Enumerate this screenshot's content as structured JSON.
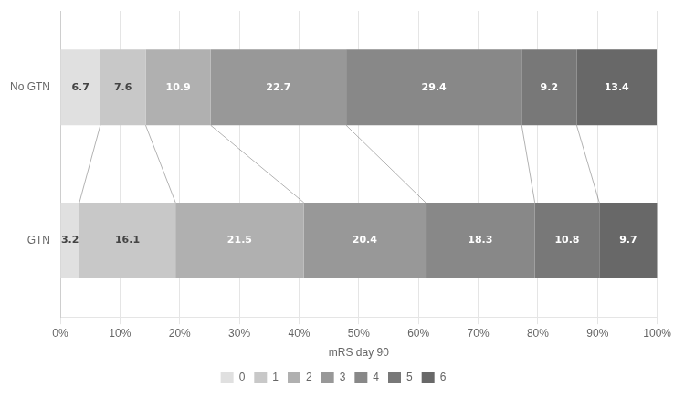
{
  "chart_data": {
    "type": "bar",
    "orientation": "horizontal",
    "stacked": true,
    "data_labels": true,
    "xlabel": "mRS day 90",
    "categories": [
      "No GTN",
      "GTN"
    ],
    "series": [
      {
        "name": "0",
        "color": "#e0e0e0",
        "values": [
          6.7,
          3.2
        ]
      },
      {
        "name": "1",
        "color": "#c8c8c8",
        "values": [
          7.6,
          16.1
        ]
      },
      {
        "name": "2",
        "color": "#b0b0b0",
        "values": [
          10.9,
          21.5
        ]
      },
      {
        "name": "3",
        "color": "#989898",
        "values": [
          22.7,
          20.4
        ]
      },
      {
        "name": "4",
        "color": "#888888",
        "values": [
          29.4,
          18.3
        ]
      },
      {
        "name": "5",
        "color": "#787878",
        "values": [
          9.2,
          10.8
        ]
      },
      {
        "name": "6",
        "color": "#686868",
        "values": [
          13.4,
          9.7
        ]
      }
    ],
    "xlim": [
      0,
      100
    ],
    "xticks": [
      {
        "value": 0,
        "label": "0%"
      },
      {
        "value": 10,
        "label": "10%"
      },
      {
        "value": 20,
        "label": "20%"
      },
      {
        "value": 30,
        "label": "30%"
      },
      {
        "value": 40,
        "label": "40%"
      },
      {
        "value": 50,
        "label": "50%"
      },
      {
        "value": 60,
        "label": "60%"
      },
      {
        "value": 70,
        "label": "70%"
      },
      {
        "value": 80,
        "label": "80%"
      },
      {
        "value": 90,
        "label": "90%"
      },
      {
        "value": 100,
        "label": "100%"
      }
    ],
    "grid": true,
    "legend": "bottom"
  }
}
